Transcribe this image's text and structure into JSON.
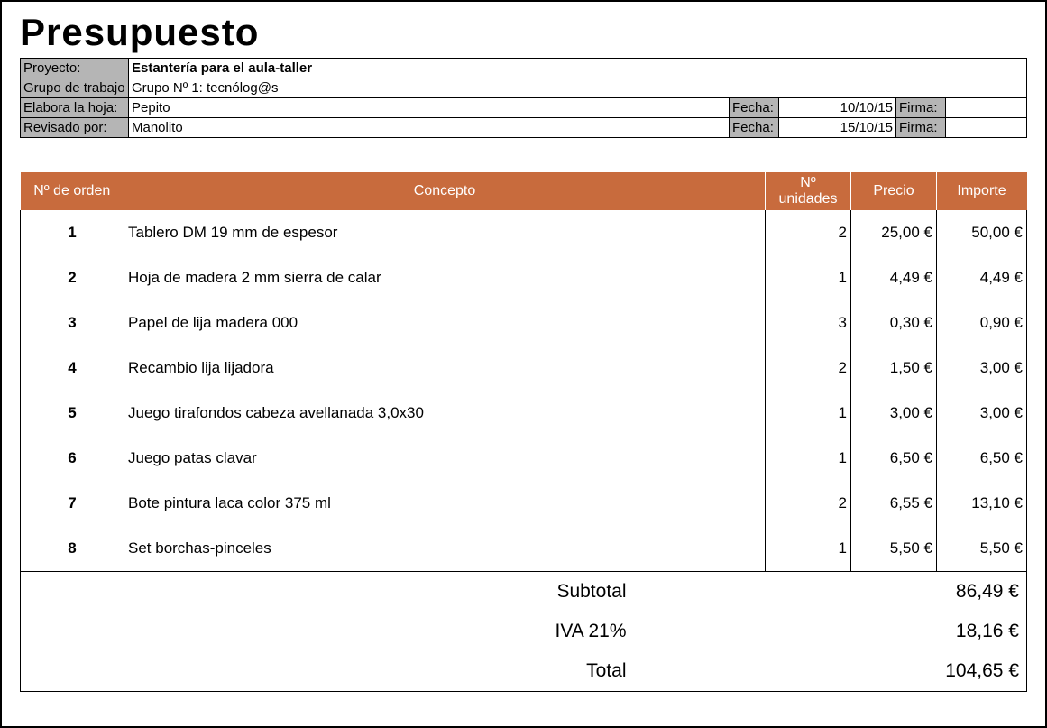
{
  "title": "Presupuesto",
  "header": {
    "labels": {
      "proyecto": "Proyecto:",
      "grupo": "Grupo de trabajo",
      "elabora": "Elabora la hoja:",
      "revisado": "Revisado por:",
      "fecha": "Fecha:",
      "firma": "Firma:"
    },
    "proyecto": "Estantería para el aula-taller",
    "grupo": "Grupo Nº 1: tecnólog@s",
    "elabora": {
      "nombre": "Pepito",
      "fecha": "10/10/15",
      "firma": ""
    },
    "revisado": {
      "nombre": "Manolito",
      "fecha": "15/10/15",
      "firma": ""
    }
  },
  "table": {
    "headers": {
      "orden": "Nº de orden",
      "concepto": "Concepto",
      "unidades": "Nº unidades",
      "precio": "Precio",
      "importe": "Importe"
    },
    "header_bg": "#c86b3d",
    "header_fg": "#ffffff",
    "font_size_header": 16,
    "font_size_body": 17,
    "rows": [
      {
        "orden": "1",
        "concepto": "Tablero DM 19 mm de espesor",
        "unidades": "2",
        "precio": "25,00 €",
        "importe": "50,00 €"
      },
      {
        "orden": "2",
        "concepto": "Hoja de madera 2 mm sierra de calar",
        "unidades": "1",
        "precio": "4,49 €",
        "importe": "4,49 €"
      },
      {
        "orden": "3",
        "concepto": "Papel de lija madera 000",
        "unidades": "3",
        "precio": "0,30 €",
        "importe": "0,90 €"
      },
      {
        "orden": "4",
        "concepto": "Recambio lija lijadora",
        "unidades": "2",
        "precio": "1,50 €",
        "importe": "3,00 €"
      },
      {
        "orden": "5",
        "concepto": "Juego tirafondos cabeza avellanada 3,0x30",
        "unidades": "1",
        "precio": "3,00 €",
        "importe": "3,00 €"
      },
      {
        "orden": "6",
        "concepto": "Juego patas clavar",
        "unidades": "1",
        "precio": "6,50 €",
        "importe": "6,50 €"
      },
      {
        "orden": "7",
        "concepto": "Bote pintura laca color 375 ml",
        "unidades": "2",
        "precio": "6,55 €",
        "importe": "13,10 €"
      },
      {
        "orden": "8",
        "concepto": "Set borchas-pinceles",
        "unidades": "1",
        "precio": "5,50 €",
        "importe": "5,50 €"
      }
    ]
  },
  "totals": {
    "subtotal_label": "Subtotal",
    "subtotal_value": "86,49 €",
    "iva_label": "IVA 21%",
    "iva_value": "18,16 €",
    "total_label": "Total",
    "total_value": "104,65 €",
    "font_size": 21
  }
}
